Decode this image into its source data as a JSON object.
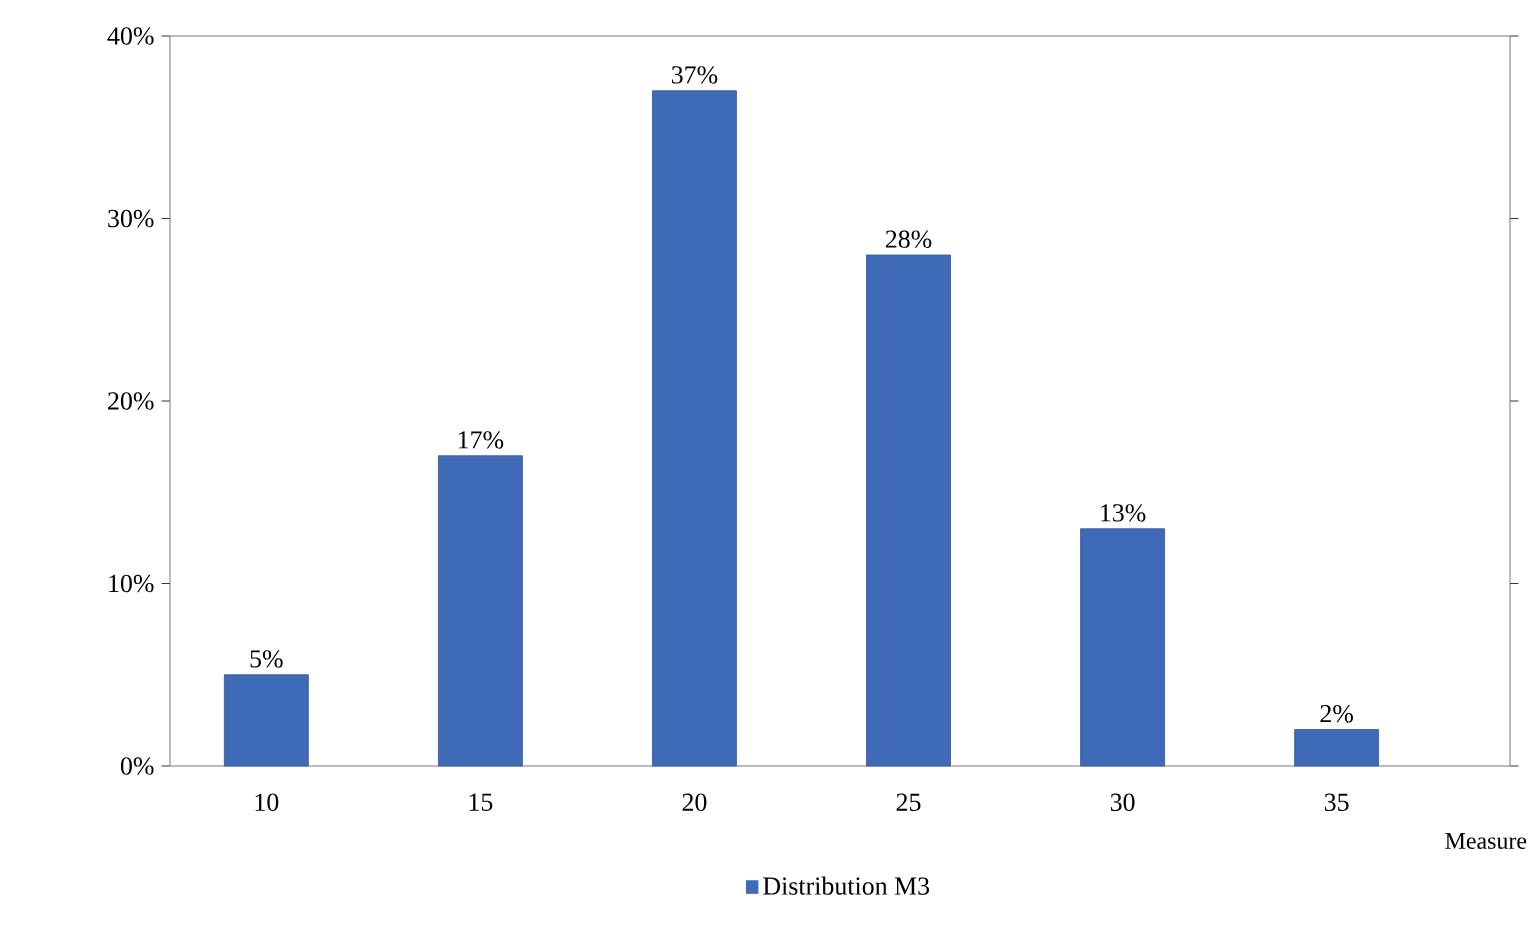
{
  "chart_data": {
    "type": "bar",
    "categories": [
      "10",
      "15",
      "20",
      "25",
      "30",
      "35"
    ],
    "series": [
      {
        "name": "Distribution M3",
        "color": "#3f6ab8",
        "values": [
          5,
          17,
          37,
          28,
          13,
          2
        ],
        "value_labels": [
          "5%",
          "17%",
          "37%",
          "28%",
          "13%",
          "2%"
        ]
      }
    ],
    "xlabel": "Measure",
    "ylim": [
      0,
      40
    ],
    "yticks": [
      {
        "value": 0,
        "label": "0%"
      },
      {
        "value": 10,
        "label": "10%"
      },
      {
        "value": 20,
        "label": "20%"
      },
      {
        "value": 30,
        "label": "30%"
      },
      {
        "value": 40,
        "label": "40%"
      }
    ],
    "legend": "bottom"
  }
}
